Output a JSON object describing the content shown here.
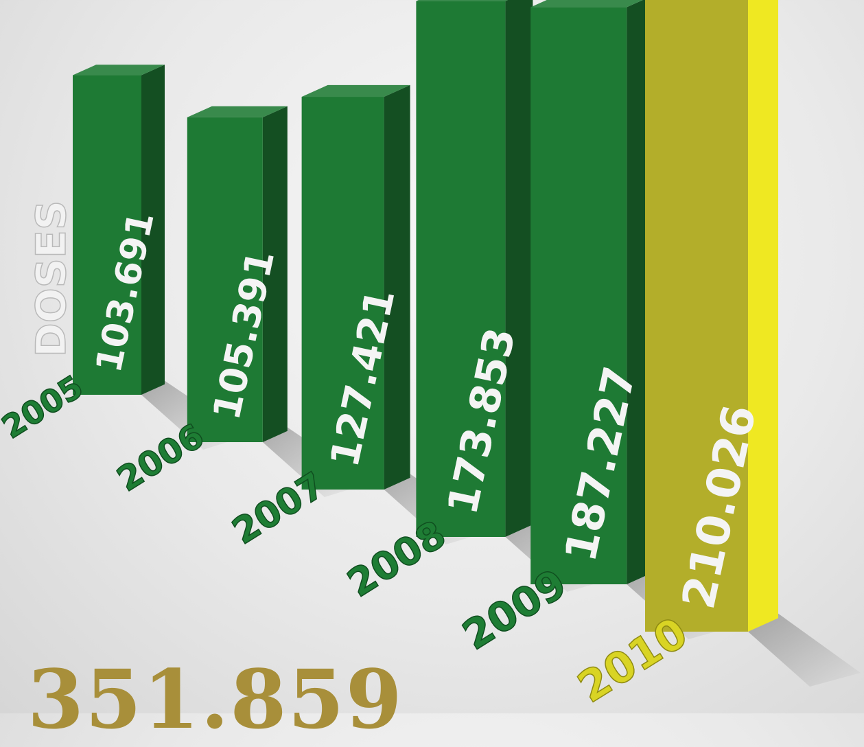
{
  "chart_data": {
    "type": "bar",
    "title": "",
    "ylabel": "DOSES",
    "xlabel": "",
    "categories": [
      "2005",
      "2006",
      "2007",
      "2008",
      "2009",
      "2010"
    ],
    "values": [
      103691,
      105391,
      127421,
      173853,
      187227,
      210026
    ],
    "value_labels": [
      "103.691",
      "105.391",
      "127.421",
      "173.853",
      "187.227",
      "210.026"
    ],
    "highlight_index": 5,
    "colors": {
      "bar": "#1e7a34",
      "bar_highlight": "#b3ae2a",
      "year": "#1e7d34",
      "year_highlight": "#d9d424",
      "total": "#a88f3a"
    }
  },
  "total": "351.859"
}
